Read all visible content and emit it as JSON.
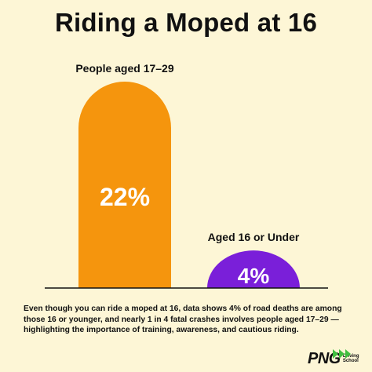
{
  "title": "Riding a Moped at 16",
  "caption": "Even though you can ride a moped at 16, data shows 4% of road deaths are among those 16 or younger, and nearly 1 in 4 fatal crashes involves people aged 17–29 — highlighting the importance of training, awareness, and cautious riding.",
  "logo": {
    "text": "PNG",
    "sub_line1": "Driving",
    "sub_line2": "School",
    "accent_color": "#3fbf3f"
  },
  "chart_data": {
    "type": "bar",
    "categories": [
      "People aged 17–29",
      "Aged 16 or Under"
    ],
    "values": [
      22,
      4
    ],
    "value_labels": [
      "22%",
      "4%"
    ],
    "colors": [
      "#f5950d",
      "#7a1fd9"
    ],
    "title": "Riding a Moped at 16",
    "xlabel": "",
    "ylabel": "",
    "ylim": [
      0,
      22
    ],
    "grid": false,
    "legend": "none"
  }
}
